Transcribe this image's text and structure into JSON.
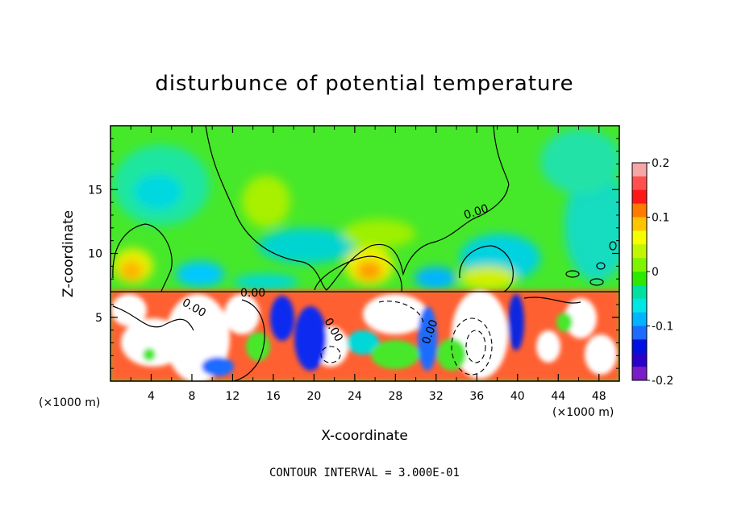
{
  "chart_data": {
    "type": "heatmap",
    "title": "disturbunce of potential temperature",
    "xlabel": "X-coordinate",
    "ylabel": "Z-coordinate",
    "x_unit": "(×1000 m)",
    "x_ticks": [
      "4",
      "8",
      "12",
      "16",
      "20",
      "24",
      "28",
      "32",
      "36",
      "40",
      "44",
      "48"
    ],
    "y_ticks": [
      "5",
      "10",
      "15"
    ],
    "xlim": [
      0,
      50
    ],
    "ylim": [
      0,
      20
    ],
    "colorbar": {
      "range": [
        -0.2,
        0.2
      ],
      "labels": [
        "0.2",
        "0.1",
        "0",
        "-0.1",
        "-0.2"
      ],
      "colors": [
        "#f6a6a6",
        "#ff5050",
        "#ff1818",
        "#ff7a00",
        "#ffc400",
        "#f5ff00",
        "#c4f500",
        "#7ef500",
        "#2ee800",
        "#00e0a0",
        "#00e6e6",
        "#00b4ff",
        "#1c6cff",
        "#0010e0",
        "#2c00c8",
        "#7a1cc8"
      ]
    },
    "contour_labels": [
      "0.00",
      "0.00",
      "0.00",
      "0.00",
      "0.00"
    ],
    "contour_interval_text": "CONTOUR INTERVAL = 3.000E-01"
  }
}
